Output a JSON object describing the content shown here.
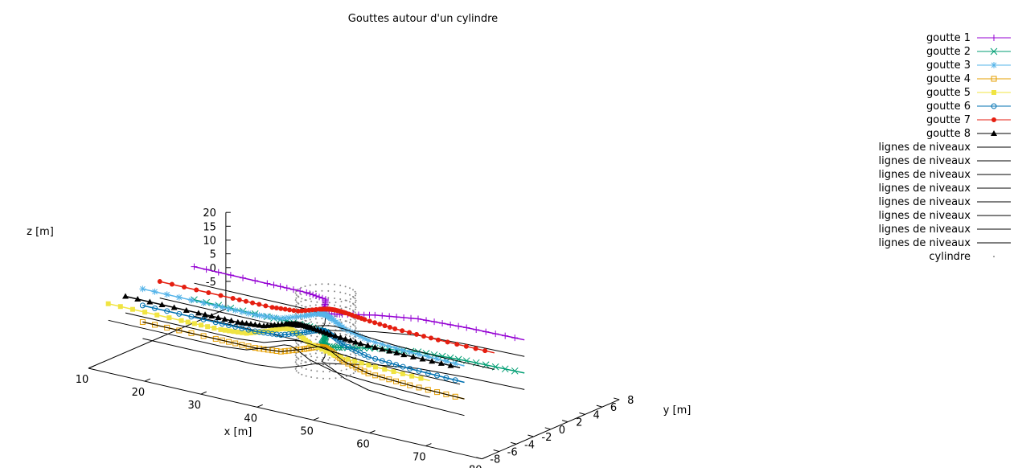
{
  "chart_data": {
    "type": "line",
    "title": "Gouttes autour d'un cylindre",
    "xlabel": "x [m]",
    "ylabel": "y [m]",
    "zlabel": "z [m]",
    "xlim": [
      10,
      80
    ],
    "ylim": [
      -8,
      8
    ],
    "zlim": [
      -15,
      20
    ],
    "x_ticks": [
      "10",
      "20",
      "30",
      "40",
      "50",
      "60",
      "70",
      "80"
    ],
    "y_ticks": [
      "-8",
      "-6",
      "-4",
      "-2",
      "0",
      "2",
      "4",
      "6",
      "8"
    ],
    "z_ticks": [
      "-5",
      "0",
      "5",
      "10",
      "15",
      "20"
    ],
    "legend_position": "top-right",
    "legend": [
      {
        "label": "goutte 1",
        "color": "#9400d3",
        "marker": "plus"
      },
      {
        "label": "goutte 2",
        "color": "#009e73",
        "marker": "cross"
      },
      {
        "label": "goutte 3",
        "color": "#56b4e9",
        "marker": "star"
      },
      {
        "label": "goutte 4",
        "color": "#e69f00",
        "marker": "open-square"
      },
      {
        "label": "goutte 5",
        "color": "#f0e442",
        "marker": "filled-square"
      },
      {
        "label": "goutte 6",
        "color": "#0072b2",
        "marker": "open-circle"
      },
      {
        "label": "goutte 7",
        "color": "#e51e10",
        "marker": "filled-circle"
      },
      {
        "label": "goutte 8",
        "color": "#000000",
        "marker": "filled-triangle"
      },
      {
        "label": "lignes de niveaux",
        "color": "#000000",
        "marker": "line"
      },
      {
        "label": "lignes de niveaux",
        "color": "#000000",
        "marker": "line"
      },
      {
        "label": "lignes de niveaux",
        "color": "#000000",
        "marker": "line"
      },
      {
        "label": "lignes de niveaux",
        "color": "#000000",
        "marker": "line"
      },
      {
        "label": "lignes de niveaux",
        "color": "#000000",
        "marker": "line"
      },
      {
        "label": "lignes de niveaux",
        "color": "#000000",
        "marker": "line"
      },
      {
        "label": "lignes de niveaux",
        "color": "#000000",
        "marker": "line"
      },
      {
        "label": "lignes de niveaux",
        "color": "#000000",
        "marker": "line"
      },
      {
        "label": "cylindre",
        "color": "#888888",
        "marker": "dot"
      }
    ],
    "cylinder": {
      "axis_x": 40,
      "axis_y": 0,
      "radius": 2,
      "z_range": [
        -12,
        16
      ]
    },
    "series": [
      {
        "name": "goutte 1",
        "color": "#9400d3",
        "marker": "plus",
        "z": 8,
        "points": [
          [
            12,
            3.0
          ],
          [
            25,
            3.0
          ],
          [
            32,
            3.0
          ],
          [
            36,
            2.6
          ],
          [
            38,
            1.2
          ],
          [
            39,
            0.2
          ],
          [
            40,
            0.1
          ],
          [
            42,
            0.6
          ],
          [
            46,
            1.8
          ],
          [
            52,
            2.9
          ],
          [
            60,
            3.3
          ],
          [
            70,
            3.5
          ]
        ]
      },
      {
        "name": "goutte 2",
        "color": "#009e73",
        "marker": "cross",
        "z": -4,
        "points": [
          [
            12,
            3.0
          ],
          [
            25,
            3.0
          ],
          [
            32,
            3.0
          ],
          [
            36,
            2.6
          ],
          [
            38,
            1.2
          ],
          [
            39,
            0.2
          ],
          [
            40,
            0.1
          ],
          [
            42,
            0.6
          ],
          [
            46,
            1.8
          ],
          [
            52,
            2.9
          ],
          [
            60,
            3.3
          ],
          [
            70,
            3.5
          ]
        ]
      },
      {
        "name": "goutte 3",
        "color": "#56b4e9",
        "marker": "star",
        "z": 8,
        "points": [
          [
            12,
            -3.0
          ],
          [
            25,
            -3.0
          ],
          [
            32,
            -3.0
          ],
          [
            36,
            -2.6
          ],
          [
            38,
            -1.2
          ],
          [
            39,
            -0.2
          ],
          [
            40,
            -0.1
          ],
          [
            42,
            -0.6
          ],
          [
            46,
            -1.8
          ],
          [
            52,
            -2.9
          ],
          [
            60,
            -3.3
          ],
          [
            70,
            -3.5
          ]
        ]
      },
      {
        "name": "goutte 4",
        "color": "#e69f00",
        "marker": "open-square",
        "z": -4,
        "points": [
          [
            12,
            -3.0
          ],
          [
            25,
            -3.0
          ],
          [
            32,
            -3.0
          ],
          [
            36,
            -2.6
          ],
          [
            38,
            -1.2
          ],
          [
            39,
            -0.2
          ],
          [
            40,
            -0.1
          ],
          [
            42,
            -0.6
          ],
          [
            46,
            -1.8
          ],
          [
            52,
            -2.9
          ],
          [
            60,
            -3.3
          ],
          [
            70,
            -3.5
          ]
        ]
      },
      {
        "name": "goutte 5",
        "color": "#f0e442",
        "marker": "filled-square",
        "z": 8,
        "points": [
          [
            12,
            -7.0
          ],
          [
            25,
            -7.0
          ],
          [
            32,
            -7.0
          ],
          [
            36,
            -6.6
          ],
          [
            38,
            -5.2
          ],
          [
            39,
            -4.2
          ],
          [
            40,
            -4.1
          ],
          [
            42,
            -4.6
          ],
          [
            46,
            -5.8
          ],
          [
            52,
            -6.9
          ],
          [
            60,
            -7.3
          ],
          [
            70,
            -7.5
          ]
        ]
      },
      {
        "name": "goutte 6",
        "color": "#0072b2",
        "marker": "open-circle",
        "z": 2,
        "points": [
          [
            12,
            -3.0
          ],
          [
            25,
            -3.0
          ],
          [
            32,
            -3.0
          ],
          [
            36,
            -2.6
          ],
          [
            38,
            -1.2
          ],
          [
            39,
            -0.2
          ],
          [
            40,
            -0.1
          ],
          [
            42,
            -0.6
          ],
          [
            46,
            -1.8
          ],
          [
            52,
            -2.9
          ],
          [
            60,
            -3.3
          ],
          [
            70,
            -3.5
          ]
        ]
      },
      {
        "name": "goutte 7",
        "color": "#e51e10",
        "marker": "filled-circle",
        "z": 8,
        "points": [
          [
            12,
            -1.0
          ],
          [
            25,
            -1.0
          ],
          [
            32,
            -1.0
          ],
          [
            36,
            -0.6
          ],
          [
            38,
            0.6
          ],
          [
            39,
            1.0
          ],
          [
            40,
            1.1
          ],
          [
            42,
            1.0
          ],
          [
            46,
            0.6
          ],
          [
            52,
            0.2
          ],
          [
            60,
            0.0
          ],
          [
            70,
            0.0
          ]
        ]
      },
      {
        "name": "goutte 8",
        "color": "#000000",
        "marker": "filled-triangle",
        "z": 8,
        "points": [
          [
            12,
            -5.0
          ],
          [
            25,
            -5.0
          ],
          [
            32,
            -5.0
          ],
          [
            36,
            -4.6
          ],
          [
            38,
            -3.4
          ],
          [
            39,
            -3.0
          ],
          [
            40,
            -2.9
          ],
          [
            42,
            -3.0
          ],
          [
            46,
            -3.4
          ],
          [
            52,
            -3.8
          ],
          [
            60,
            -4.0
          ],
          [
            70,
            -4.0
          ]
        ]
      }
    ]
  }
}
